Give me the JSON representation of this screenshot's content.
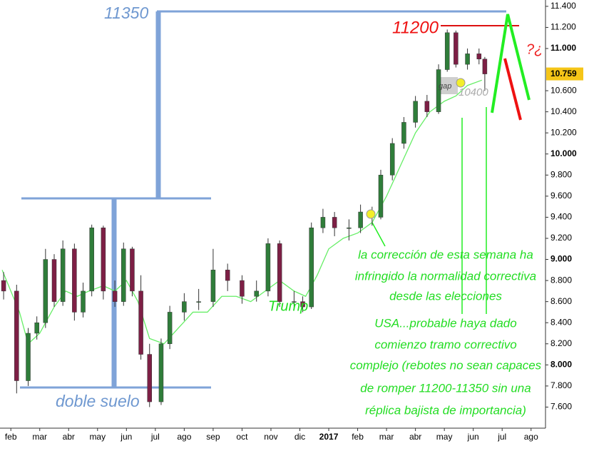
{
  "chart_data": {
    "type": "candlestick",
    "colors": {
      "up": "#2f7d3a",
      "down": "#7d1f45"
    },
    "x": [
      0.75,
      1.2,
      1.6,
      1.9,
      2.2,
      2.5,
      2.8,
      3.2,
      3.5,
      3.8,
      4.2,
      4.6,
      4.9,
      5.2,
      5.5,
      5.8,
      6.2,
      6.5,
      7.0,
      7.5,
      8.0,
      8.5,
      9.0,
      9.5,
      9.9,
      10.3,
      10.8,
      11.1,
      11.4,
      11.8,
      12.2,
      12.7,
      13.1,
      13.5,
      13.8,
      14.2,
      14.6,
      15.0,
      15.4,
      15.8,
      16.1,
      16.4,
      16.8,
      17.2,
      17.4
    ],
    "open": [
      8800,
      8700,
      7850,
      8300,
      8400,
      9000,
      8600,
      9100,
      8500,
      8700,
      9300,
      8700,
      8600,
      9100,
      8700,
      8100,
      7650,
      8200,
      8500,
      8600,
      8600,
      8900,
      8800,
      8650,
      8700,
      9150,
      8600,
      8600,
      8550,
      9300,
      9400,
      9300,
      9300,
      9450,
      9400,
      9800,
      10100,
      10300,
      10500,
      10400,
      10800,
      11150,
      10850,
      10950,
      10900
    ],
    "high": [
      8880,
      8760,
      8350,
      8460,
      9100,
      9050,
      9180,
      9150,
      8780,
      9330,
      9320,
      8800,
      9160,
      9120,
      8850,
      8200,
      8250,
      8560,
      8680,
      8720,
      9100,
      8960,
      8850,
      8800,
      9200,
      9180,
      8700,
      8650,
      9350,
      9480,
      9450,
      9380,
      9520,
      9500,
      9850,
      10150,
      10350,
      10550,
      10560,
      10850,
      11180,
      11170,
      11000,
      11000,
      10920
    ],
    "low": [
      8620,
      7730,
      7800,
      8240,
      8350,
      8550,
      8560,
      8420,
      8450,
      8650,
      8620,
      8550,
      8560,
      8650,
      8050,
      7600,
      7620,
      8150,
      8420,
      8520,
      8550,
      8700,
      8580,
      8600,
      8650,
      8550,
      8520,
      8500,
      8530,
      9250,
      9220,
      9180,
      9250,
      9320,
      9380,
      9750,
      10050,
      10250,
      10350,
      10380,
      10780,
      10820,
      10800,
      10850,
      10600
    ],
    "close": [
      8700,
      7850,
      8300,
      8400,
      9000,
      8600,
      9100,
      8500,
      8700,
      9300,
      8700,
      8600,
      9100,
      8700,
      8100,
      7650,
      8200,
      8500,
      8600,
      8600,
      8900,
      8800,
      8650,
      8700,
      9150,
      8600,
      8600,
      8550,
      9300,
      9400,
      9300,
      9300,
      9450,
      9400,
      9800,
      10100,
      10300,
      10500,
      10400,
      10800,
      11150,
      10850,
      10950,
      10900,
      10759
    ],
    "moving_average": {
      "color": "#66ee66",
      "x": [
        0.7,
        1.3,
        1.6,
        2.0,
        2.5,
        2.9,
        3.3,
        3.7,
        4.2,
        4.6,
        5.0,
        5.4,
        5.8,
        6.3,
        6.8,
        7.3,
        7.8,
        8.3,
        8.8,
        9.3,
        9.8,
        10.3,
        10.8,
        11.2,
        11.6,
        12.0,
        12.5,
        13.0,
        13.5,
        14.0,
        14.5,
        15.0,
        15.5,
        16.0,
        16.4,
        16.8,
        17.3
      ],
      "values": [
        8900,
        8500,
        8200,
        8300,
        8550,
        8700,
        8650,
        8700,
        8750,
        8700,
        8800,
        8600,
        8250,
        8200,
        8350,
        8500,
        8500,
        8650,
        8650,
        8600,
        8700,
        8800,
        8700,
        8650,
        8850,
        9100,
        9200,
        9250,
        9350,
        9600,
        9900,
        10200,
        10400,
        10500,
        10550,
        10650,
        10700
      ]
    },
    "last_price": {
      "value": 10759,
      "label": "10.759"
    },
    "xlim": [
      0.625,
      19.5
    ],
    "ylim": [
      7400,
      11460
    ],
    "xticks": [
      {
        "value": 1,
        "label": "feb"
      },
      {
        "value": 2,
        "label": "mar"
      },
      {
        "value": 3,
        "label": "abr"
      },
      {
        "value": 4,
        "label": "may"
      },
      {
        "value": 5,
        "label": "jun"
      },
      {
        "value": 6,
        "label": "jul"
      },
      {
        "value": 7,
        "label": "ago"
      },
      {
        "value": 8,
        "label": "sep"
      },
      {
        "value": 9,
        "label": "oct"
      },
      {
        "value": 10,
        "label": "nov"
      },
      {
        "value": 11,
        "label": "dic"
      },
      {
        "value": 12,
        "label": "2017"
      },
      {
        "value": 13,
        "label": "feb"
      },
      {
        "value": 14,
        "label": "mar"
      },
      {
        "value": 15,
        "label": "abr"
      },
      {
        "value": 16,
        "label": "may"
      },
      {
        "value": 17,
        "label": "jun"
      },
      {
        "value": 18,
        "label": "jul"
      },
      {
        "value": 19,
        "label": "ago"
      }
    ],
    "yticks": [
      {
        "value": 7600,
        "label": "7.600"
      },
      {
        "value": 7800,
        "label": "7.800"
      },
      {
        "value": 8000,
        "label": "8.000"
      },
      {
        "value": 8200,
        "label": "8.200"
      },
      {
        "value": 8400,
        "label": "8.400"
      },
      {
        "value": 8600,
        "label": "8.600"
      },
      {
        "value": 8800,
        "label": "8.800"
      },
      {
        "value": 9000,
        "label": "9.000"
      },
      {
        "value": 9200,
        "label": "9.200"
      },
      {
        "value": 9400,
        "label": "9.400"
      },
      {
        "value": 9600,
        "label": "9.600"
      },
      {
        "value": 9800,
        "label": "9.800"
      },
      {
        "value": 10000,
        "label": "10.000"
      },
      {
        "value": 10200,
        "label": "10.200"
      },
      {
        "value": 10400,
        "label": "10.400"
      },
      {
        "value": 10600,
        "label": "10.600"
      },
      {
        "value": 11000,
        "label": "11.000"
      },
      {
        "value": 11200,
        "label": "11.200"
      },
      {
        "value": 11400,
        "label": "11.400"
      }
    ],
    "annotations": {
      "resistance": "11350",
      "level": "11200",
      "double_bottom": "doble suelo",
      "event": "Trump",
      "gap": "gap",
      "gap_level": "10400",
      "question": "?¿",
      "comment": [
        "la corrección de esta semana ha",
        "infringido la normalidad correctiva",
        "desde las elecciones",
        "USA...probable haya dado",
        "comienzo tramo correctivo",
        "complejo (rebotes no sean capaces",
        "de romper 11200-11350 sin una",
        "réplica bajista de importancia)"
      ]
    }
  }
}
